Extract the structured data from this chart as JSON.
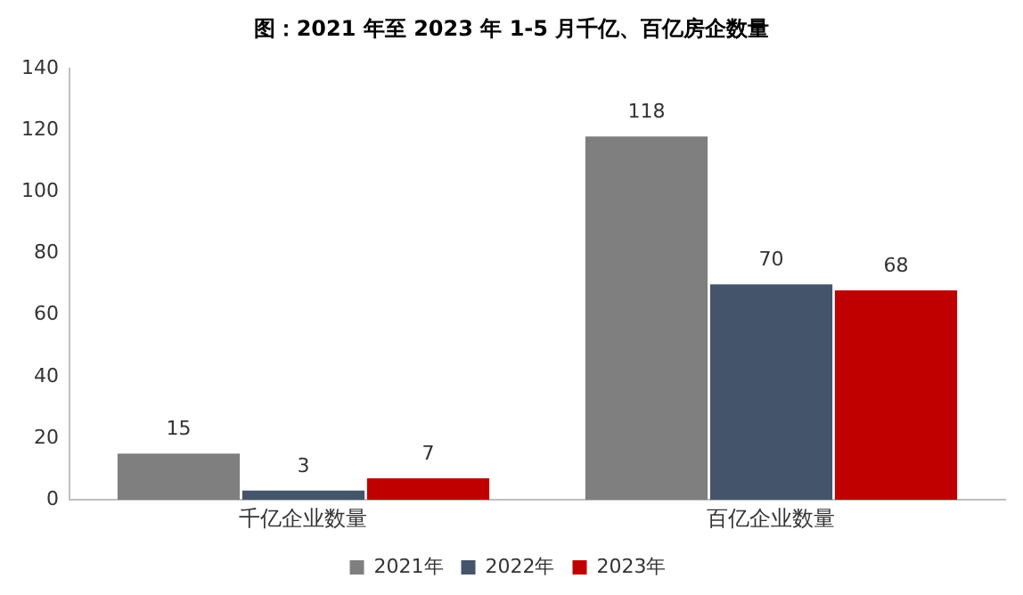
{
  "chart_data": {
    "type": "bar",
    "title": "图：2021 年至 2023 年 1-5 月千亿、百亿房企数量",
    "categories": [
      "千亿企业数量",
      "百亿企业数量"
    ],
    "series": [
      {
        "name": "2021年",
        "color": "#7f7f7f",
        "values": [
          15,
          118
        ]
      },
      {
        "name": "2022年",
        "color": "#44546a",
        "values": [
          3,
          70
        ]
      },
      {
        "name": "2023年",
        "color": "#c00000",
        "values": [
          7,
          68
        ]
      }
    ],
    "ylim": [
      0,
      140
    ],
    "yticks": [
      0,
      20,
      40,
      60,
      80,
      100,
      120,
      140
    ],
    "grid": false,
    "legend": "bottom",
    "data_labels": true
  }
}
